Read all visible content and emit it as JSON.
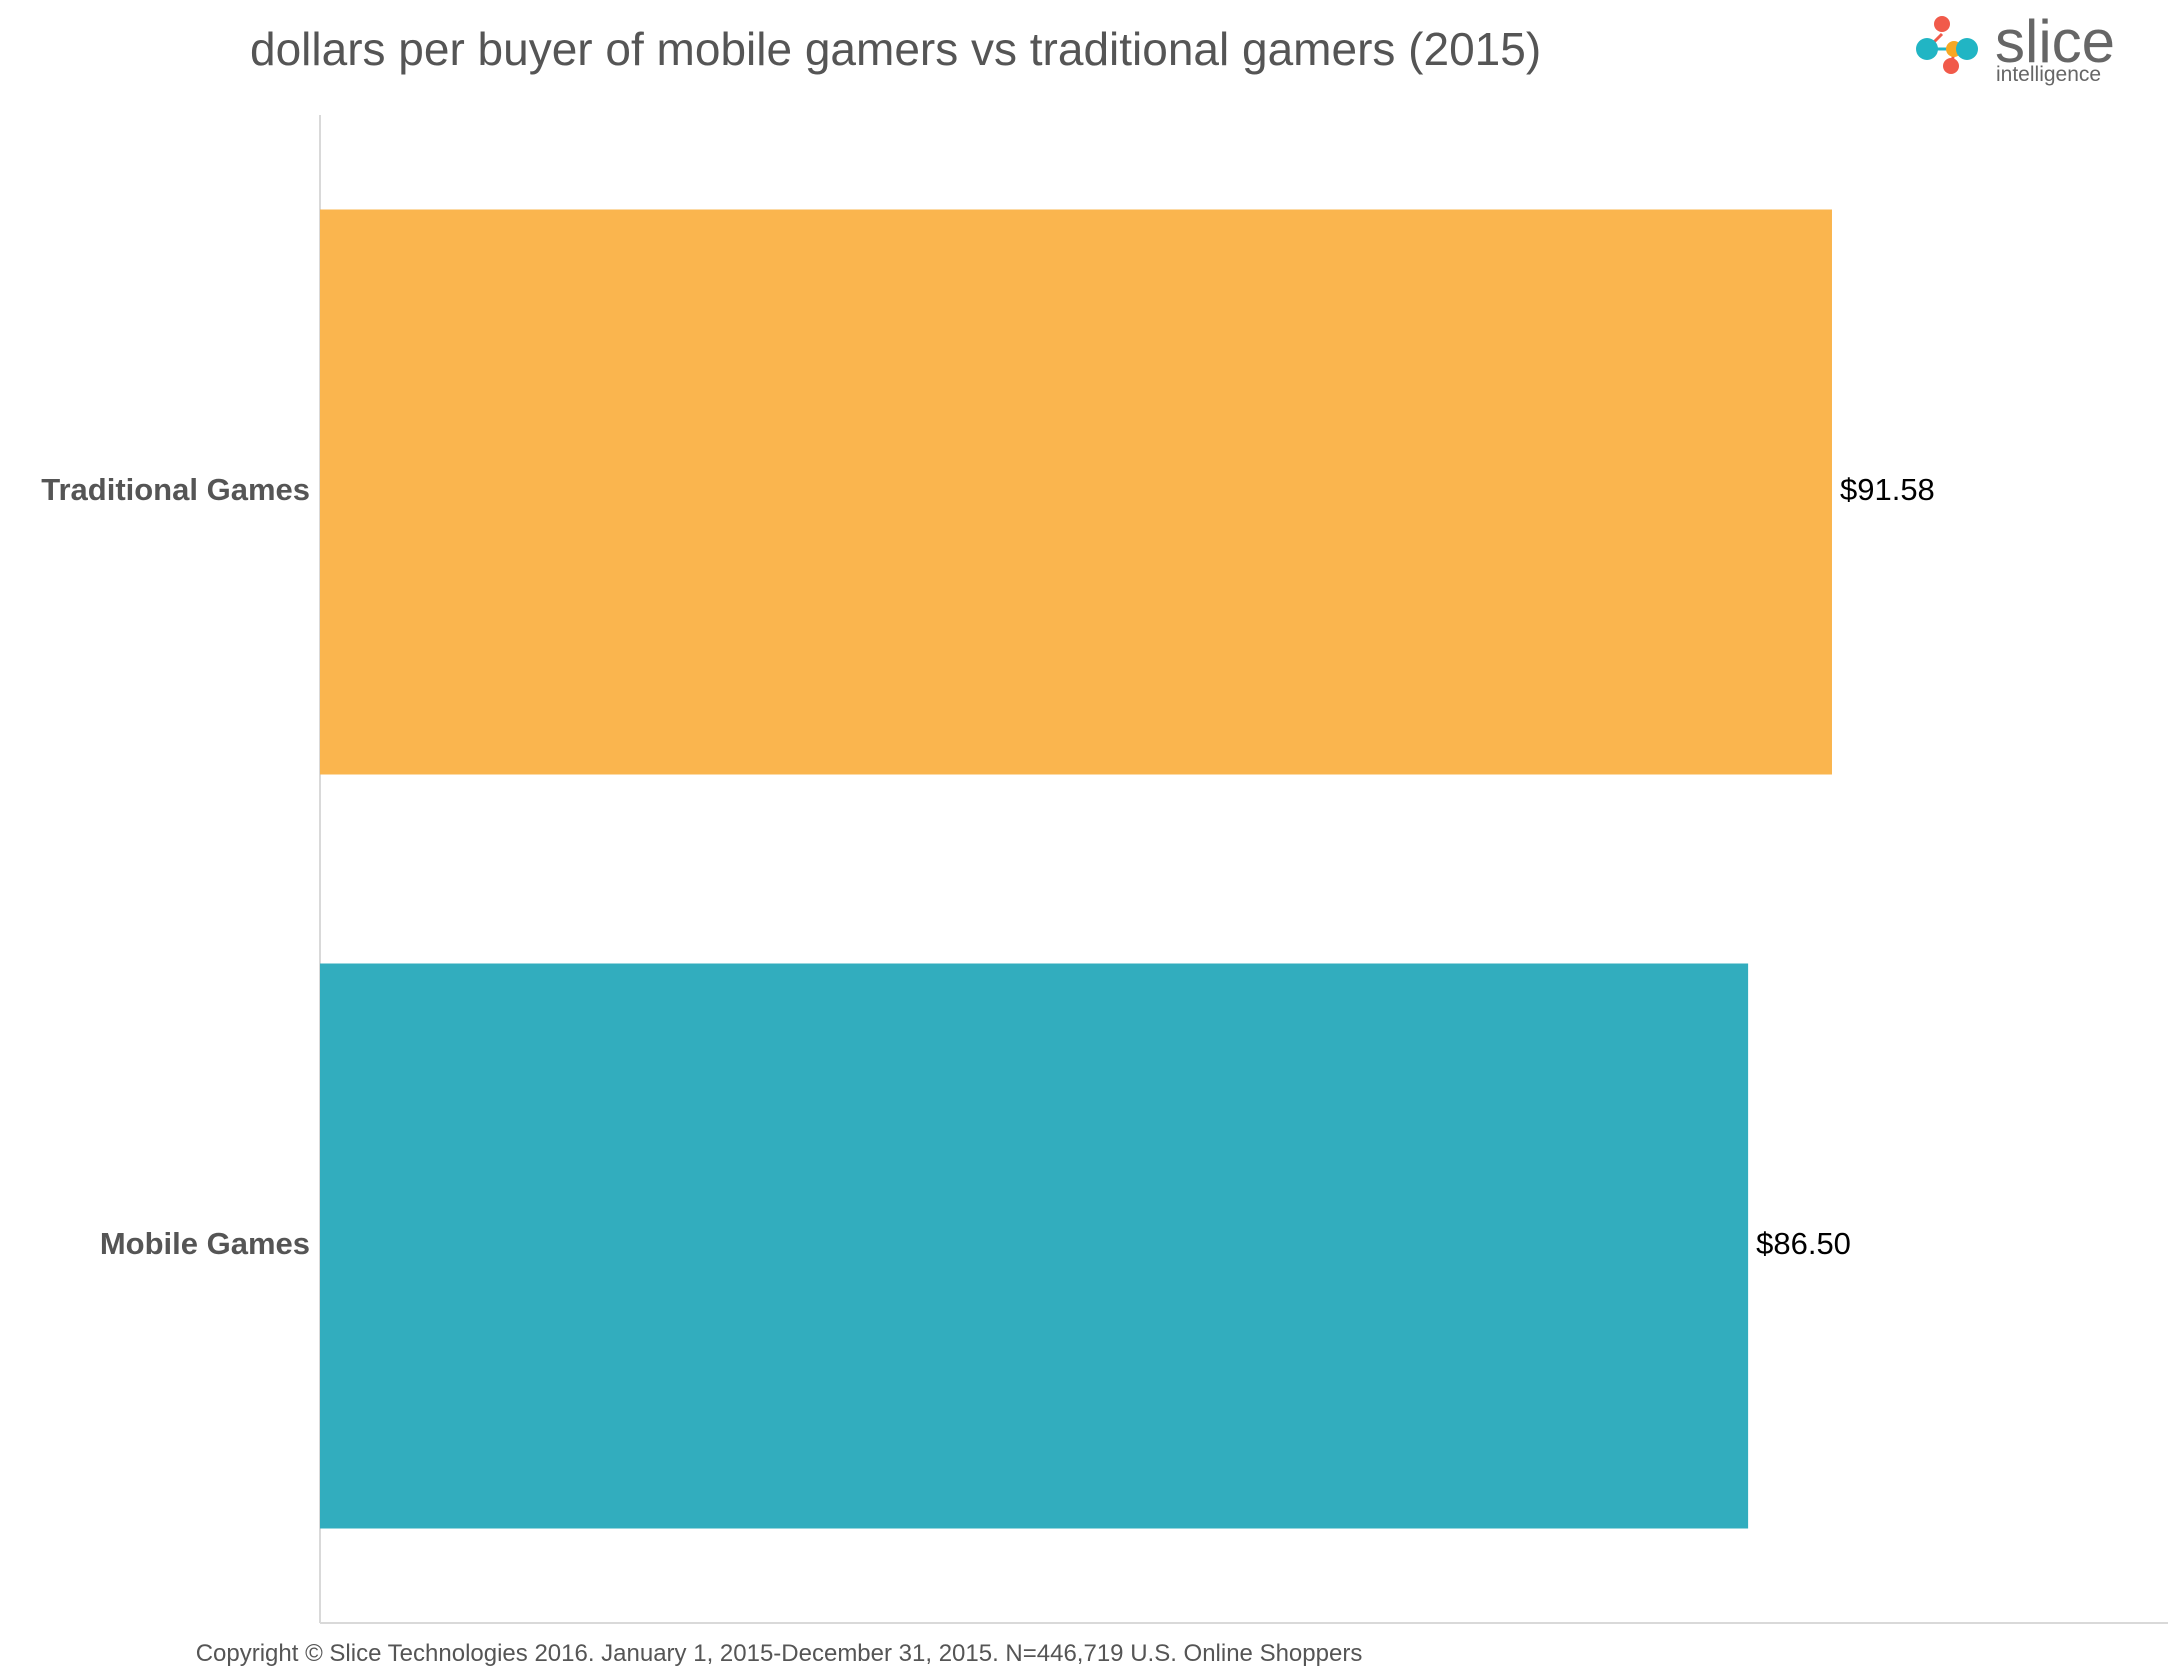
{
  "logo": {
    "name": "slice",
    "tagline": "intelligence",
    "colors": [
      "#f15a4a",
      "#21b5c4",
      "#f7a823"
    ]
  },
  "chart_data": {
    "type": "bar",
    "orientation": "horizontal",
    "title": "dollars per buyer of mobile gamers vs traditional gamers (2015)",
    "categories": [
      "Traditional Games",
      "Mobile Games"
    ],
    "values": [
      91.58,
      86.5
    ],
    "value_labels": [
      "$91.58",
      "$86.50"
    ],
    "colors": [
      "#fab54e",
      "#32adbe"
    ],
    "xlim": [
      0,
      100
    ],
    "xlabel": "",
    "ylabel": "",
    "grid": false,
    "legend": "none",
    "footnote": "Copyright © Slice Technologies 2016. January 1, 2015-December 31, 2015. N=446,719 U.S. Online Shoppers"
  }
}
